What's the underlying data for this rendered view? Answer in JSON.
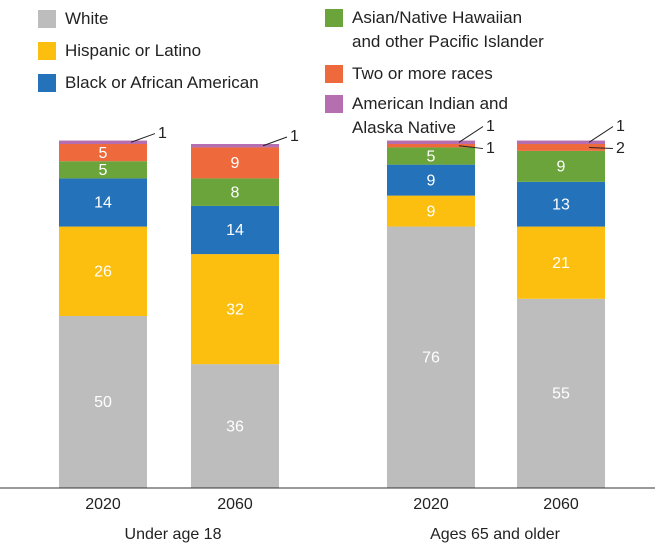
{
  "chart_data": {
    "type": "stacked-bar",
    "categories": [
      "2020",
      "2060",
      "2020",
      "2060"
    ],
    "groups": [
      "Under age 18",
      "Ages 65 and older"
    ],
    "series": [
      {
        "name": "White",
        "color": "#bdbdbd",
        "values": [
          50,
          36,
          76,
          55
        ]
      },
      {
        "name": "Hispanic or Latino",
        "color": "#fcbf10",
        "values": [
          26,
          32,
          9,
          21
        ]
      },
      {
        "name": "Black or African American",
        "color": "#2472b9",
        "values": [
          14,
          14,
          9,
          13
        ]
      },
      {
        "name": "Asian/Native Hawaiian and other Pacific Islander",
        "color": "#6aa43a",
        "values": [
          5,
          8,
          5,
          9
        ]
      },
      {
        "name": "Two or more races",
        "color": "#ee6a3c",
        "values": [
          5,
          9,
          1,
          2
        ]
      },
      {
        "name": "American Indian and Alaska Native",
        "color": "#b56fb0",
        "values": [
          1,
          1,
          1,
          1
        ]
      }
    ]
  }
}
